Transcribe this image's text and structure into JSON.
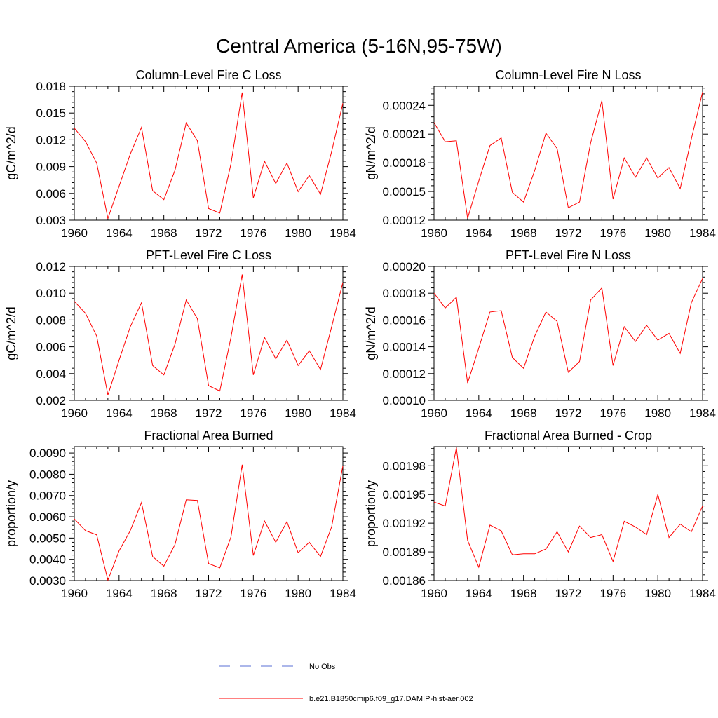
{
  "figure": {
    "title": "Central America (5-16N,95-75W)",
    "legend": [
      {
        "label": "No Obs",
        "color": "#5a6fd6",
        "dash": "dashed"
      },
      {
        "label": "b.e21.B1850cmip6.f09_g17.DAMIP-hist-aer.002",
        "color": "#ff0000",
        "dash": "solid"
      }
    ]
  },
  "chart_data": [
    {
      "type": "line",
      "title": "Column-Level Fire C Loss",
      "ylabel": "gC/m^2/d",
      "xlim": [
        1960,
        1984
      ],
      "ylim": [
        0.003,
        0.018
      ],
      "xticks": [
        "1960",
        "1964",
        "1968",
        "1972",
        "1976",
        "1980",
        "1984"
      ],
      "yticks": [
        "0.003",
        "0.006",
        "0.009",
        "0.012",
        "0.015",
        "0.018"
      ],
      "x": [
        1960,
        1961,
        1962,
        1963,
        1964,
        1965,
        1966,
        1967,
        1968,
        1969,
        1970,
        1971,
        1972,
        1973,
        1974,
        1975,
        1976,
        1977,
        1978,
        1979,
        1980,
        1981,
        1982,
        1983,
        1984
      ],
      "series": [
        {
          "name": "b.e21.B1850cmip6.f09_g17.DAMIP-hist-aer.002",
          "color": "#ff0000",
          "values": [
            0.0133,
            0.0118,
            0.0094,
            0.0032,
            0.0068,
            0.0104,
            0.0134,
            0.0063,
            0.0053,
            0.0086,
            0.0139,
            0.0119,
            0.0043,
            0.0038,
            0.0093,
            0.0173,
            0.0055,
            0.0096,
            0.0071,
            0.0094,
            0.0062,
            0.008,
            0.0059,
            0.0107,
            0.0161
          ]
        }
      ]
    },
    {
      "type": "line",
      "title": "Column-Level Fire N Loss",
      "ylabel": "gN/m^2/d",
      "xlim": [
        1960,
        1984
      ],
      "ylim": [
        0.00012,
        0.00026
      ],
      "xticks": [
        "1960",
        "1964",
        "1968",
        "1972",
        "1976",
        "1980",
        "1984"
      ],
      "yticks": [
        "0.00012",
        "0.00015",
        "0.00018",
        "0.00021",
        "0.00024"
      ],
      "x": [
        1960,
        1961,
        1962,
        1963,
        1964,
        1965,
        1966,
        1967,
        1968,
        1969,
        1970,
        1971,
        1972,
        1973,
        1974,
        1975,
        1976,
        1977,
        1978,
        1979,
        1980,
        1981,
        1982,
        1983,
        1984
      ],
      "series": [
        {
          "name": "b.e21.B1850cmip6.f09_g17.DAMIP-hist-aer.002",
          "color": "#ff0000",
          "values": [
            0.000222,
            0.000202,
            0.000203,
            0.000122,
            0.000161,
            0.000198,
            0.000206,
            0.000149,
            0.000139,
            0.000172,
            0.000211,
            0.000195,
            0.000133,
            0.000139,
            0.000201,
            0.000245,
            0.000142,
            0.000185,
            0.000165,
            0.000185,
            0.000164,
            0.000175,
            0.000153,
            0.000205,
            0.000254
          ]
        }
      ]
    },
    {
      "type": "line",
      "title": "PFT-Level Fire C Loss",
      "ylabel": "gC/m^2/d",
      "xlim": [
        1960,
        1984
      ],
      "ylim": [
        0.002,
        0.012
      ],
      "xticks": [
        "1960",
        "1964",
        "1968",
        "1972",
        "1976",
        "1980",
        "1984"
      ],
      "yticks": [
        "0.002",
        "0.004",
        "0.006",
        "0.008",
        "0.010",
        "0.012"
      ],
      "x": [
        1960,
        1961,
        1962,
        1963,
        1964,
        1965,
        1966,
        1967,
        1968,
        1969,
        1970,
        1971,
        1972,
        1973,
        1974,
        1975,
        1976,
        1977,
        1978,
        1979,
        1980,
        1981,
        1982,
        1983,
        1984
      ],
      "series": [
        {
          "name": "b.e21.B1850cmip6.f09_g17.DAMIP-hist-aer.002",
          "color": "#ff0000",
          "values": [
            0.0094,
            0.0085,
            0.0068,
            0.0024,
            0.005,
            0.0075,
            0.0093,
            0.0046,
            0.0039,
            0.0062,
            0.0095,
            0.0081,
            0.0031,
            0.0027,
            0.0067,
            0.0114,
            0.0039,
            0.0067,
            0.0051,
            0.0065,
            0.0046,
            0.0057,
            0.0043,
            0.0075,
            0.0108
          ]
        }
      ]
    },
    {
      "type": "line",
      "title": "PFT-Level Fire N Loss",
      "ylabel": "gN/m^2/d",
      "xlim": [
        1960,
        1984
      ],
      "ylim": [
        0.0001,
        0.0002
      ],
      "xticks": [
        "1960",
        "1964",
        "1968",
        "1972",
        "1976",
        "1980",
        "1984"
      ],
      "yticks": [
        "0.00010",
        "0.00012",
        "0.00014",
        "0.00016",
        "0.00018",
        "0.00020"
      ],
      "x": [
        1960,
        1961,
        1962,
        1963,
        1964,
        1965,
        1966,
        1967,
        1968,
        1969,
        1970,
        1971,
        1972,
        1973,
        1974,
        1975,
        1976,
        1977,
        1978,
        1979,
        1980,
        1981,
        1982,
        1983,
        1984
      ],
      "series": [
        {
          "name": "b.e21.B1850cmip6.f09_g17.DAMIP-hist-aer.002",
          "color": "#ff0000",
          "values": [
            0.00018,
            0.000169,
            0.000177,
            0.000113,
            0.000139,
            0.000166,
            0.000167,
            0.000132,
            0.000124,
            0.000148,
            0.000166,
            0.000159,
            0.000121,
            0.000129,
            0.000175,
            0.000184,
            0.000126,
            0.000155,
            0.000144,
            0.000156,
            0.000145,
            0.00015,
            0.000135,
            0.000173,
            0.000191
          ]
        }
      ]
    },
    {
      "type": "line",
      "title": "Fractional Area Burned",
      "ylabel": "proportion/y",
      "xlim": [
        1960,
        1984
      ],
      "ylim": [
        0.003,
        0.0093
      ],
      "xticks": [
        "1960",
        "1964",
        "1968",
        "1972",
        "1976",
        "1980",
        "1984"
      ],
      "yticks": [
        "0.0030",
        "0.0040",
        "0.0050",
        "0.0060",
        "0.0070",
        "0.0080",
        "0.0090"
      ],
      "x": [
        1960,
        1961,
        1962,
        1963,
        1964,
        1965,
        1966,
        1967,
        1968,
        1969,
        1970,
        1971,
        1972,
        1973,
        1974,
        1975,
        1976,
        1977,
        1978,
        1979,
        1980,
        1981,
        1982,
        1983,
        1984
      ],
      "series": [
        {
          "name": "b.e21.B1850cmip6.f09_g17.DAMIP-hist-aer.002",
          "color": "#ff0000",
          "values": [
            0.0059,
            0.00535,
            0.00515,
            0.00302,
            0.0044,
            0.00535,
            0.00667,
            0.00413,
            0.00368,
            0.0047,
            0.0068,
            0.00677,
            0.0038,
            0.0036,
            0.00505,
            0.00845,
            0.00418,
            0.0058,
            0.0048,
            0.00577,
            0.00431,
            0.0048,
            0.00413,
            0.00553,
            0.0084
          ]
        }
      ]
    },
    {
      "type": "line",
      "title": "Fractional Area Burned - Crop",
      "ylabel": "proportion/y",
      "xlim": [
        1960,
        1984
      ],
      "ylim": [
        0.00186,
        0.002
      ],
      "xticks": [
        "1960",
        "1964",
        "1968",
        "1972",
        "1976",
        "1980",
        "1984"
      ],
      "yticks": [
        "0.00186",
        "0.00189",
        "0.00192",
        "0.00195",
        "0.00198"
      ],
      "x": [
        1960,
        1961,
        1962,
        1963,
        1964,
        1965,
        1966,
        1967,
        1968,
        1969,
        1970,
        1971,
        1972,
        1973,
        1974,
        1975,
        1976,
        1977,
        1978,
        1979,
        1980,
        1981,
        1982,
        1983,
        1984
      ],
      "series": [
        {
          "name": "b.e21.B1850cmip6.f09_g17.DAMIP-hist-aer.002",
          "color": "#ff0000",
          "values": [
            0.001942,
            0.001938,
            0.001999,
            0.001902,
            0.001874,
            0.001918,
            0.001912,
            0.001887,
            0.001888,
            0.001888,
            0.001893,
            0.001911,
            0.00189,
            0.001917,
            0.001905,
            0.001908,
            0.00188,
            0.001922,
            0.001916,
            0.001908,
            0.00195,
            0.001905,
            0.001919,
            0.001911,
            0.001938
          ]
        }
      ]
    }
  ]
}
